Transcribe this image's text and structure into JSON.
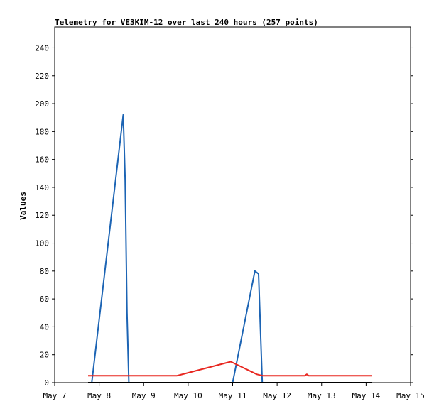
{
  "chart_data": {
    "type": "line",
    "title": "Telemetry for VE3KIM-12 over last 240 hours (257 points)",
    "xlabel": "",
    "ylabel": "Values",
    "x_ticks": [
      "May 7",
      "May 8",
      "May 9",
      "May 10",
      "May 11",
      "May 12",
      "May 13",
      "May 14",
      "May 15"
    ],
    "xlim": [
      "May 7",
      "May 15"
    ],
    "y_ticks": [
      0,
      20,
      40,
      60,
      80,
      100,
      120,
      140,
      160,
      180,
      200,
      220,
      240
    ],
    "ylim": [
      0,
      255
    ],
    "grid": false,
    "series": [
      {
        "color": "#1c64b4",
        "points": [
          [
            "May 7 20:00",
            0
          ],
          [
            "May 8 13:00",
            192
          ],
          [
            "May 8 14:00",
            145
          ],
          [
            "May 8 15:00",
            50
          ],
          [
            "May 8 16:00",
            0
          ],
          [
            "May 8 17:00",
            0
          ],
          [
            "May 11 00:00",
            0
          ],
          [
            "May 11 12:00",
            80
          ],
          [
            "May 11 14:00",
            78
          ],
          [
            "May 11 16:00",
            0
          ]
        ]
      },
      {
        "color": "#e8261f",
        "points": [
          [
            "May 7 18:00",
            5
          ],
          [
            "May 9 18:00",
            5
          ],
          [
            "May 10 23:00",
            15
          ],
          [
            "May 11 13:00",
            6
          ],
          [
            "May 11 16:00",
            5
          ],
          [
            "May 12 15:00",
            5
          ],
          [
            "May 12 16:00",
            6
          ],
          [
            "May 12 17:00",
            5
          ],
          [
            "May 14 03:00",
            5
          ]
        ]
      },
      {
        "color": "#000000",
        "points": [
          [
            "May 7 18:00",
            0
          ],
          [
            "May 14 03:00",
            0
          ]
        ]
      }
    ]
  }
}
